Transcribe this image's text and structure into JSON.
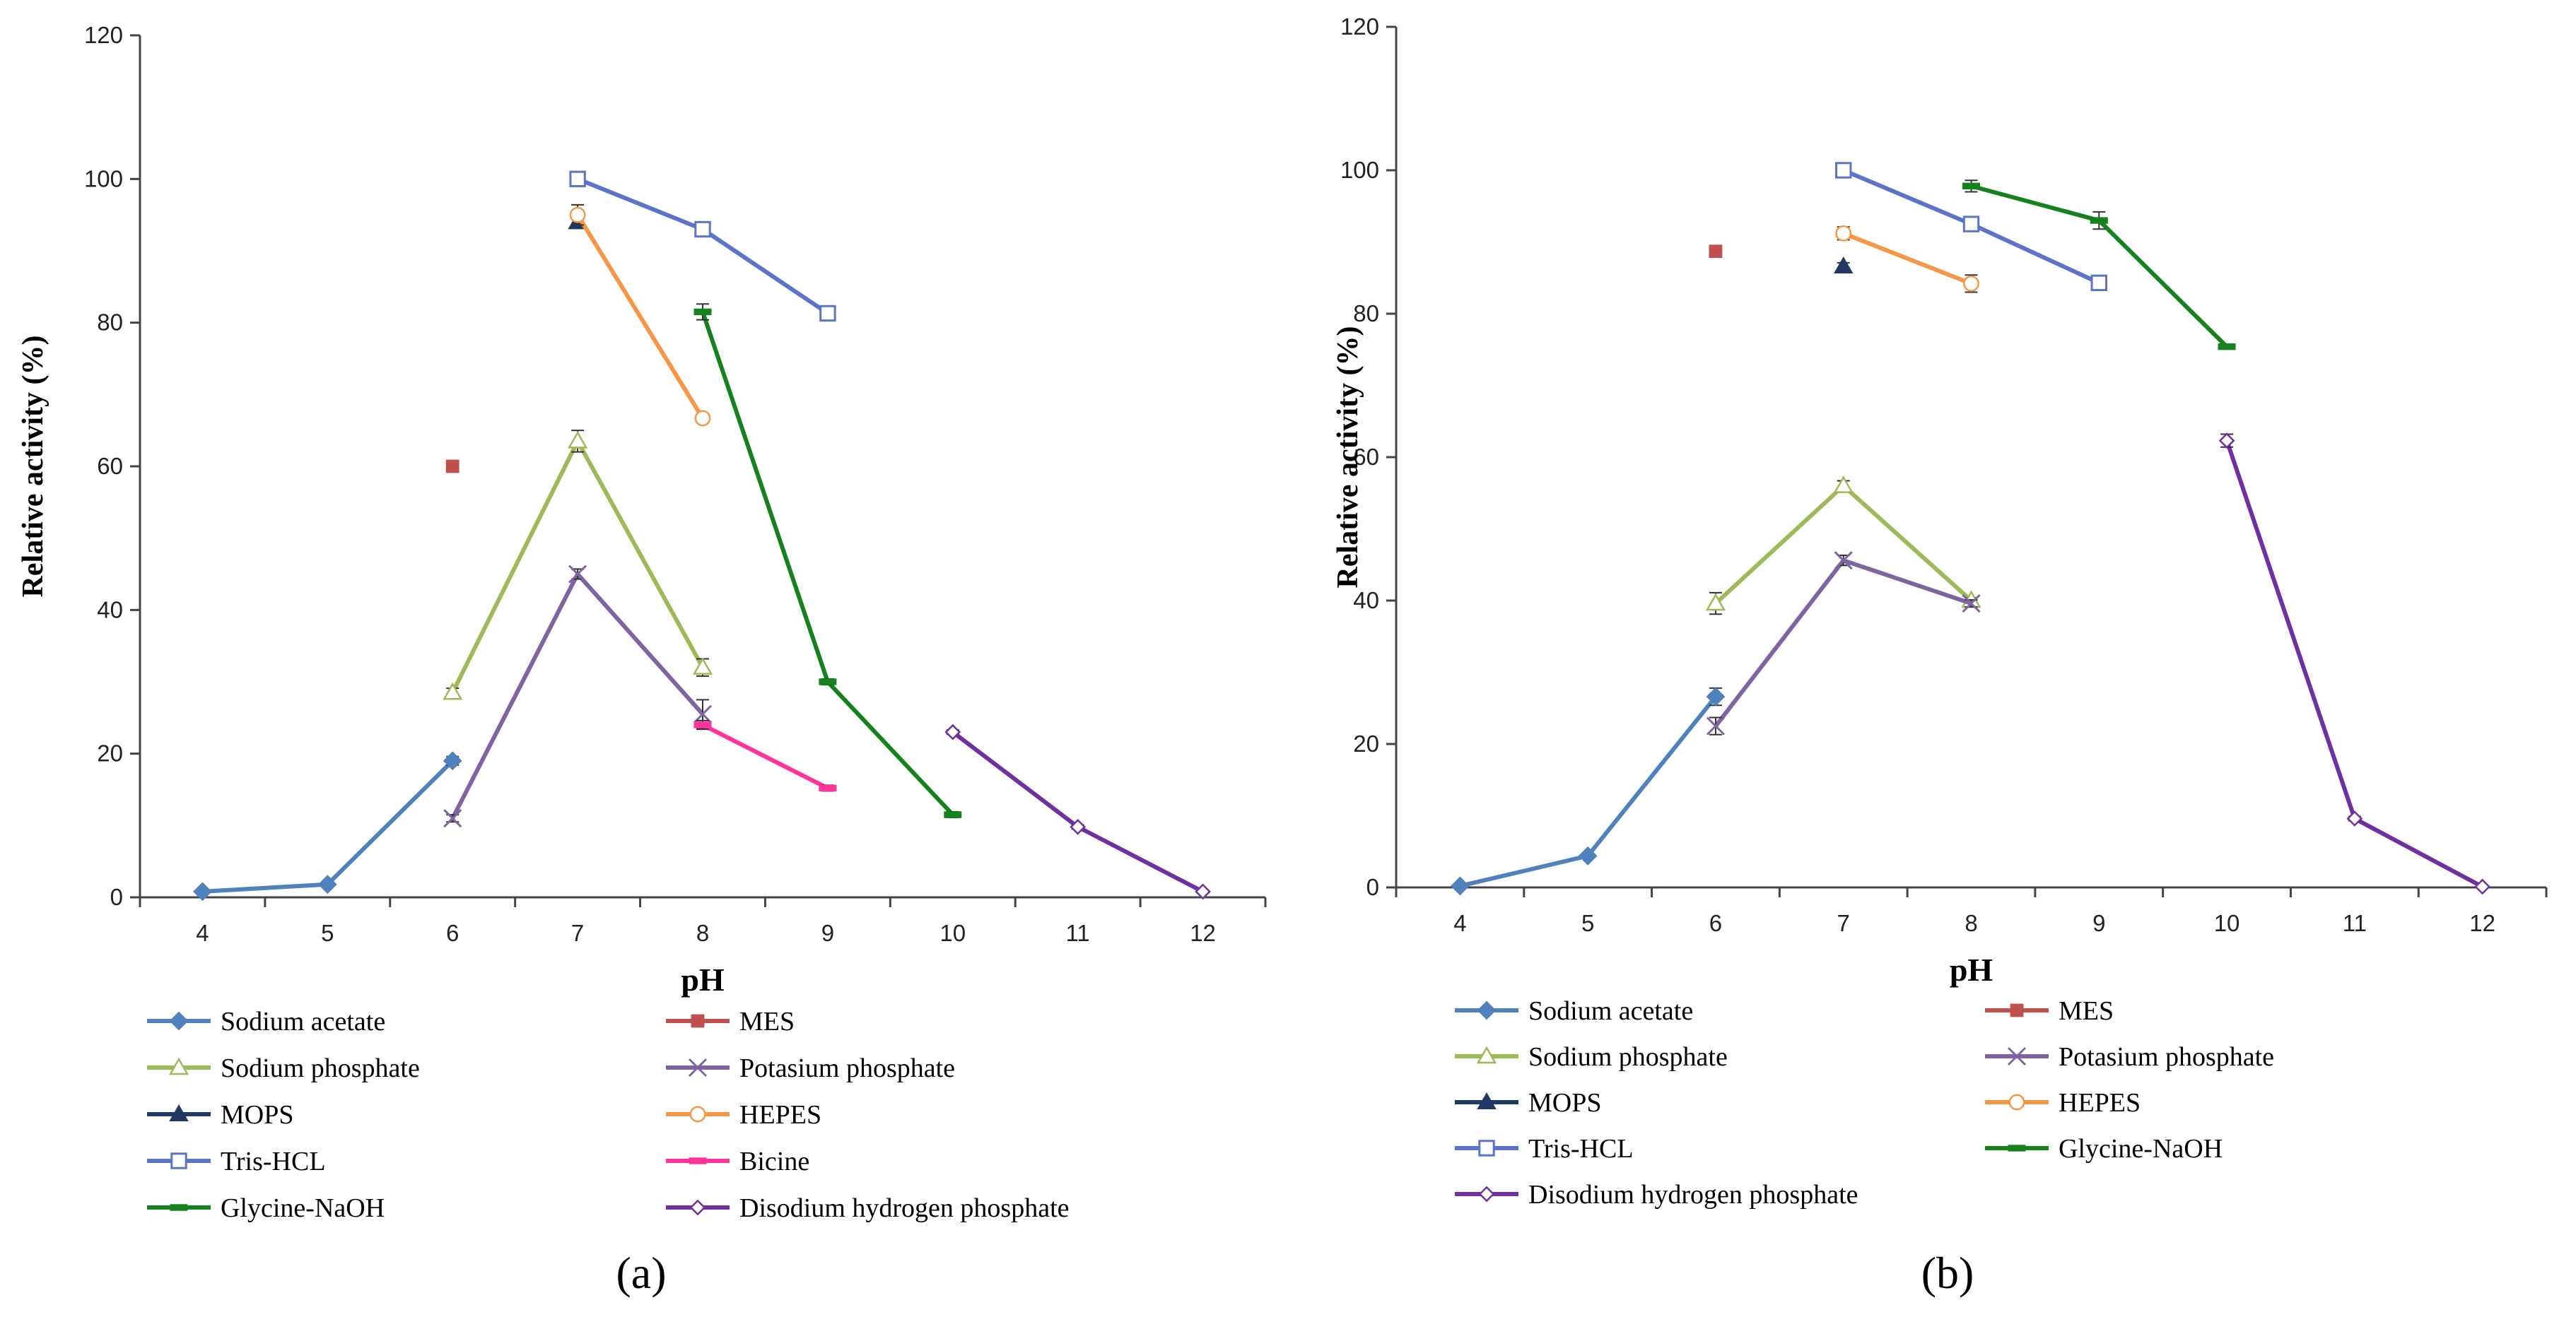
{
  "colors": {
    "Sodium acetate": "#4F81BD",
    "MES": "#C0504D",
    "Sodium phosphate": "#9BBB59",
    "Potasium phosphate": "#8064A2",
    "MOPS": "#1F3864",
    "HEPES": "#F79646",
    "Tris-HCL": "#5B74C9",
    "Bicine": "#FF3399",
    "Glycine-NaOH": "#15821E",
    "Disodium hydrogen phosphate": "#7030A0"
  },
  "markers": {
    "Sodium acetate": "diamond-filled",
    "MES": "square-filled",
    "Sodium phosphate": "triangle-open",
    "Potasium phosphate": "x-mark",
    "MOPS": "triangle-filled",
    "HEPES": "circle-open",
    "Tris-HCL": "square-open",
    "Bicine": "dash",
    "Glycine-NaOH": "dash",
    "Disodium hydrogen phosphate": "diamond-open"
  },
  "chart_data": [
    {
      "type": "line",
      "panel_label": "(a)",
      "xlabel": "pH",
      "ylabel": "Relative activity (%)",
      "xlim": [
        3.5,
        12.5
      ],
      "ylim": [
        0,
        120
      ],
      "x_ticks": [
        4,
        5,
        6,
        7,
        8,
        9,
        10,
        11,
        12
      ],
      "y_ticks": [
        0,
        20,
        40,
        60,
        80,
        100,
        120
      ],
      "grid": false,
      "legend_position": "bottom",
      "legend_columns": 2,
      "series": [
        {
          "name": "Sodium acetate",
          "x": [
            4,
            5,
            6
          ],
          "y": [
            0.8,
            1.8,
            19
          ],
          "err": [
            0,
            0,
            0.6
          ]
        },
        {
          "name": "MES",
          "x": [
            6
          ],
          "y": [
            60
          ],
          "err": [
            0.4
          ]
        },
        {
          "name": "Sodium phosphate",
          "x": [
            6,
            7,
            8
          ],
          "y": [
            28.5,
            63.5,
            32
          ],
          "err": [
            0.6,
            1.5,
            1.2
          ]
        },
        {
          "name": "Potasium phosphate",
          "x": [
            6,
            7,
            8
          ],
          "y": [
            11,
            45,
            25.5
          ],
          "err": [
            0.5,
            0.7,
            2
          ]
        },
        {
          "name": "MOPS",
          "x": [
            7
          ],
          "y": [
            94
          ],
          "err": [
            0.5
          ]
        },
        {
          "name": "HEPES",
          "x": [
            7,
            8
          ],
          "y": [
            95,
            66.7
          ],
          "err": [
            1.4,
            0.6
          ]
        },
        {
          "name": "Tris-HCL",
          "x": [
            7,
            8,
            9
          ],
          "y": [
            100,
            93,
            81.3
          ],
          "err": [
            0.4,
            0.5,
            0.5
          ]
        },
        {
          "name": "Bicine",
          "x": [
            8,
            9
          ],
          "y": [
            24,
            15.2
          ],
          "err": [
            0.6,
            0.4
          ]
        },
        {
          "name": "Glycine-NaOH",
          "x": [
            8,
            9,
            10
          ],
          "y": [
            81.5,
            30,
            11.5
          ],
          "err": [
            1.1,
            0.4,
            0.4
          ]
        },
        {
          "name": "Disodium hydrogen phosphate",
          "x": [
            10,
            11,
            12
          ],
          "y": [
            23,
            9.8,
            0.8
          ],
          "err": [
            0.3,
            0.3,
            0.2
          ]
        }
      ]
    },
    {
      "type": "line",
      "panel_label": "(b)",
      "xlabel": "pH",
      "ylabel": "Relative activity (%)",
      "xlim": [
        3.5,
        12.5
      ],
      "ylim": [
        0,
        120
      ],
      "x_ticks": [
        4,
        5,
        6,
        7,
        8,
        9,
        10,
        11,
        12
      ],
      "y_ticks": [
        0,
        20,
        40,
        60,
        80,
        100,
        120
      ],
      "grid": false,
      "legend_position": "bottom",
      "legend_columns": 2,
      "series": [
        {
          "name": "Sodium acetate",
          "x": [
            4,
            5,
            6
          ],
          "y": [
            0.2,
            4.4,
            26.6
          ],
          "err": [
            0,
            0,
            1.2
          ]
        },
        {
          "name": "MES",
          "x": [
            6
          ],
          "y": [
            88.7
          ],
          "err": [
            0.4
          ]
        },
        {
          "name": "Sodium phosphate",
          "x": [
            6,
            7,
            8
          ],
          "y": [
            39.6,
            56,
            40
          ],
          "err": [
            1.5,
            0.7,
            0.4
          ]
        },
        {
          "name": "Potasium phosphate",
          "x": [
            6,
            7,
            8
          ],
          "y": [
            22.5,
            45.6,
            39.6
          ],
          "err": [
            1.2,
            0.7,
            0.5
          ]
        },
        {
          "name": "MOPS",
          "x": [
            7
          ],
          "y": [
            86.6
          ],
          "err": [
            0.5
          ]
        },
        {
          "name": "HEPES",
          "x": [
            7,
            8
          ],
          "y": [
            91.2,
            84.2
          ],
          "err": [
            0.9,
            1.2
          ]
        },
        {
          "name": "Tris-HCL",
          "x": [
            7,
            8,
            9
          ],
          "y": [
            100,
            92.5,
            84.3
          ],
          "err": [
            0.4,
            0.6,
            0.6
          ]
        },
        {
          "name": "Glycine-NaOH",
          "x": [
            8,
            9,
            10
          ],
          "y": [
            97.8,
            93,
            75.4
          ],
          "err": [
            0.8,
            1.2,
            0.3
          ]
        },
        {
          "name": "Disodium hydrogen phosphate",
          "x": [
            10,
            11,
            12
          ],
          "y": [
            62.3,
            9.6,
            0.1
          ],
          "err": [
            0.9,
            0.3,
            0.1
          ]
        }
      ]
    }
  ]
}
